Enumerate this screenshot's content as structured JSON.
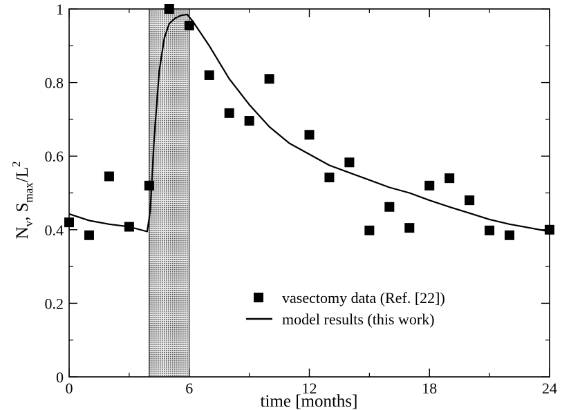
{
  "chart_data": {
    "type": "scatter",
    "xlabel": "time [months]",
    "ylabel": {
      "base": "N",
      "sub1": "v",
      "sep": ", S",
      "sub2": "max",
      "slash": "/L",
      "sup": "2"
    },
    "xlim": [
      0,
      24
    ],
    "ylim": [
      0,
      1
    ],
    "xticks": [
      {
        "value": 0,
        "label": "0"
      },
      {
        "value": 6,
        "label": "6"
      },
      {
        "value": 12,
        "label": "12"
      },
      {
        "value": 18,
        "label": "18"
      },
      {
        "value": 24,
        "label": "24"
      }
    ],
    "yticks": [
      {
        "value": 0,
        "label": "0"
      },
      {
        "value": 0.2,
        "label": "0.2"
      },
      {
        "value": 0.4,
        "label": "0.4"
      },
      {
        "value": 0.6,
        "label": "0.6"
      },
      {
        "value": 0.8,
        "label": "0.8"
      },
      {
        "value": 1,
        "label": "1"
      }
    ],
    "shaded_region": {
      "x": [
        4,
        6
      ],
      "color": "#c8c8c8"
    },
    "legend_position": "bottom-right",
    "series": [
      {
        "name": "vasectomy data (Ref. [22])",
        "kind": "markers",
        "marker": "square",
        "color": "#000000",
        "points": [
          {
            "x": 0,
            "y": 0.42
          },
          {
            "x": 1,
            "y": 0.385
          },
          {
            "x": 2,
            "y": 0.545
          },
          {
            "x": 3,
            "y": 0.408
          },
          {
            "x": 4,
            "y": 0.52
          },
          {
            "x": 5,
            "y": 1.0
          },
          {
            "x": 6,
            "y": 0.955
          },
          {
            "x": 7,
            "y": 0.82
          },
          {
            "x": 8,
            "y": 0.717
          },
          {
            "x": 9,
            "y": 0.696
          },
          {
            "x": 10,
            "y": 0.81
          },
          {
            "x": 12,
            "y": 0.658
          },
          {
            "x": 13,
            "y": 0.542
          },
          {
            "x": 14,
            "y": 0.583
          },
          {
            "x": 15,
            "y": 0.398
          },
          {
            "x": 16,
            "y": 0.462
          },
          {
            "x": 17,
            "y": 0.405
          },
          {
            "x": 18,
            "y": 0.52
          },
          {
            "x": 19,
            "y": 0.54
          },
          {
            "x": 20,
            "y": 0.48
          },
          {
            "x": 21,
            "y": 0.398
          },
          {
            "x": 22,
            "y": 0.385
          },
          {
            "x": 24,
            "y": 0.4
          }
        ]
      },
      {
        "name": "model results (this work)",
        "kind": "line",
        "color": "#000000",
        "points": [
          {
            "x": 0,
            "y": 0.443
          },
          {
            "x": 1,
            "y": 0.425
          },
          {
            "x": 2,
            "y": 0.415
          },
          {
            "x": 3,
            "y": 0.408
          },
          {
            "x": 3.9,
            "y": 0.395
          },
          {
            "x": 4.05,
            "y": 0.45
          },
          {
            "x": 4.25,
            "y": 0.65
          },
          {
            "x": 4.5,
            "y": 0.83
          },
          {
            "x": 4.75,
            "y": 0.92
          },
          {
            "x": 5,
            "y": 0.96
          },
          {
            "x": 5.3,
            "y": 0.975
          },
          {
            "x": 5.6,
            "y": 0.983
          },
          {
            "x": 5.9,
            "y": 0.985
          },
          {
            "x": 6.2,
            "y": 0.965
          },
          {
            "x": 7,
            "y": 0.9
          },
          {
            "x": 8,
            "y": 0.81
          },
          {
            "x": 9,
            "y": 0.74
          },
          {
            "x": 10,
            "y": 0.68
          },
          {
            "x": 11,
            "y": 0.635
          },
          {
            "x": 12,
            "y": 0.605
          },
          {
            "x": 13,
            "y": 0.575
          },
          {
            "x": 14,
            "y": 0.555
          },
          {
            "x": 15,
            "y": 0.535
          },
          {
            "x": 16,
            "y": 0.515
          },
          {
            "x": 17,
            "y": 0.5
          },
          {
            "x": 18,
            "y": 0.48
          },
          {
            "x": 19,
            "y": 0.462
          },
          {
            "x": 20,
            "y": 0.445
          },
          {
            "x": 21,
            "y": 0.428
          },
          {
            "x": 22,
            "y": 0.415
          },
          {
            "x": 23,
            "y": 0.405
          },
          {
            "x": 24,
            "y": 0.395
          }
        ]
      }
    ]
  }
}
